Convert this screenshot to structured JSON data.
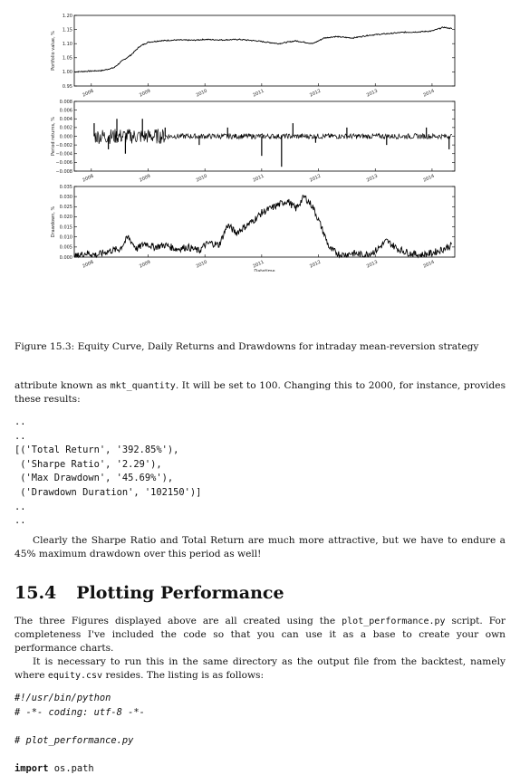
{
  "figure_caption": "Figure 15.3: Equity Curve, Daily Returns and Drawdowns for intraday mean-reversion strategy",
  "chart_data": [
    {
      "type": "line",
      "ylabel": "Portfolio value, %",
      "xlabel": "",
      "ylim": [
        0.95,
        1.2
      ],
      "yticks": [
        "0.95",
        "1.00",
        "1.05",
        "1.10",
        "1.15",
        "1.20"
      ],
      "xticks": [
        "2008",
        "2009",
        "2010",
        "2011",
        "2012",
        "2013",
        "2014"
      ],
      "series": [
        {
          "x": [
            2007.7,
            2008.0,
            2008.2,
            2008.4,
            2008.55,
            2008.7,
            2008.85,
            2009.0,
            2009.2,
            2009.5,
            2009.8,
            2010.0,
            2010.3,
            2010.6,
            2010.9,
            2011.1,
            2011.3,
            2011.6,
            2011.9,
            2012.1,
            2012.3,
            2012.6,
            2012.9,
            2013.2,
            2013.5,
            2013.8,
            2014.0,
            2014.2,
            2014.35
          ],
          "y": [
            1.0,
            1.003,
            1.005,
            1.015,
            1.04,
            1.06,
            1.09,
            1.105,
            1.11,
            1.113,
            1.112,
            1.115,
            1.113,
            1.115,
            1.11,
            1.105,
            1.1,
            1.11,
            1.1,
            1.12,
            1.125,
            1.12,
            1.13,
            1.135,
            1.14,
            1.142,
            1.145,
            1.158,
            1.153
          ]
        }
      ]
    },
    {
      "type": "line",
      "ylabel": "Period returns, %",
      "xlabel": "",
      "ylim": [
        -0.008,
        0.008
      ],
      "yticks": [
        "−0.008",
        "−0.006",
        "−0.004",
        "−0.002",
        "0.000",
        "0.002",
        "0.004",
        "0.006",
        "0.008"
      ],
      "xticks": [
        "2008",
        "2009",
        "2010",
        "2011",
        "2012",
        "2013",
        "2014"
      ],
      "series": [
        {
          "x": [
            2008.05,
            2008.3,
            2008.45,
            2008.6,
            2008.9,
            2009.3,
            2009.9,
            2010.4,
            2011.0,
            2011.35,
            2011.55,
            2011.95,
            2012.5,
            2013.2,
            2013.9,
            2014.3
          ],
          "y": [
            0.003,
            -0.003,
            0.004,
            -0.004,
            0.004,
            0.002,
            -0.002,
            0.002,
            -0.0045,
            -0.007,
            0.003,
            -0.0015,
            0.002,
            -0.002,
            0.002,
            -0.003
          ]
        }
      ]
    },
    {
      "type": "area",
      "ylabel": "Drawdown, %",
      "xlabel": "Datetime",
      "ylim": [
        0.0,
        0.035
      ],
      "yticks": [
        "0.000",
        "0.005",
        "0.010",
        "0.015",
        "0.020",
        "0.025",
        "0.030",
        "0.035"
      ],
      "xticks": [
        "2008",
        "2009",
        "2010",
        "2011",
        "2012",
        "2013",
        "2014"
      ],
      "series": [
        {
          "x": [
            2007.7,
            2007.9,
            2008.1,
            2008.3,
            2008.5,
            2008.65,
            2008.8,
            2008.95,
            2009.1,
            2009.3,
            2009.5,
            2009.7,
            2009.9,
            2010.0,
            2010.1,
            2010.25,
            2010.4,
            2010.55,
            2010.7,
            2010.85,
            2011.0,
            2011.15,
            2011.3,
            2011.45,
            2011.6,
            2011.75,
            2011.9,
            2012.05,
            2012.2,
            2012.4,
            2012.6,
            2012.8,
            2013.0,
            2013.2,
            2013.4,
            2013.6,
            2013.8,
            2014.0,
            2014.2,
            2014.35
          ],
          "y": [
            0.0,
            0.002,
            0.001,
            0.003,
            0.004,
            0.01,
            0.004,
            0.007,
            0.005,
            0.006,
            0.004,
            0.005,
            0.003,
            0.006,
            0.007,
            0.006,
            0.016,
            0.012,
            0.015,
            0.018,
            0.022,
            0.024,
            0.026,
            0.028,
            0.024,
            0.03,
            0.025,
            0.015,
            0.004,
            0.001,
            0.002,
            0.001,
            0.003,
            0.008,
            0.004,
            0.002,
            0.001,
            0.002,
            0.004,
            0.006
          ]
        }
      ]
    }
  ],
  "para1": {
    "before": "attribute known as ",
    "code": "mkt_quantity",
    "after": ". It will be set to 100. Changing this to 2000, for instance, provides these results:"
  },
  "output_block": "..\n..\n[('Total Return', '392.85%'),\n ('Sharpe Ratio', '2.29'),\n ('Max Drawdown', '45.69%'),\n ('Drawdown Duration', '102150')]\n..\n..",
  "para2": "Clearly the Sharpe Ratio and Total Return are much more attractive, but we have to endure a 45% maximum drawdown over this period as well!",
  "section": {
    "number": "15.4",
    "title": "Plotting Performance"
  },
  "para3": {
    "before": "The three Figures displayed above are all created using the ",
    "code": "plot_performance.py",
    "after": " script. For completeness I've included the code so that you can use it as a base to create your own performance charts."
  },
  "para4": {
    "before": "It is necessary to run this in the same directory as the output file from the backtest, namely where ",
    "code": "equity.csv",
    "after": " resides. The listing is as follows:"
  },
  "listing": {
    "line1": "#!/usr/bin/python",
    "line2": "# -*- coding: utf-8 -*-",
    "line3": "# plot_performance.py",
    "line4_kw": "import",
    "line4_rest": " os.path"
  }
}
